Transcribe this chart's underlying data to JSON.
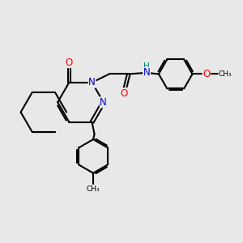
{
  "background_color": "#e8e8e8",
  "bond_color": "#000000",
  "atom_colors": {
    "N": "#0000cc",
    "O": "#ff0000",
    "H": "#008080",
    "C": "#000000"
  },
  "font_size": 7.5,
  "figsize": [
    3.0,
    3.0
  ],
  "dpi": 100
}
